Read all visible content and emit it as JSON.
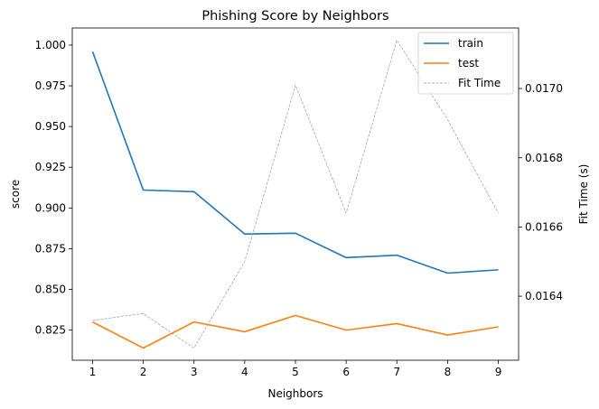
{
  "chart_data": {
    "type": "line",
    "title": "Phishing Score by Neighbors",
    "xlabel": "Neighbors",
    "ylabel": "score",
    "y2label": "Fit Time (s)",
    "x": [
      1,
      2,
      3,
      4,
      5,
      6,
      7,
      8,
      9
    ],
    "xlim": [
      0.6,
      9.4
    ],
    "ylim": [
      0.8065,
      1.0105
    ],
    "y2lim": [
      0.016215,
      0.017175
    ],
    "yticks": [
      0.825,
      0.85,
      0.875,
      0.9,
      0.925,
      0.95,
      0.975,
      1.0
    ],
    "ytick_labels": [
      "0.825",
      "0.850",
      "0.875",
      "0.900",
      "0.925",
      "0.950",
      "0.975",
      "1.000"
    ],
    "y2ticks": [
      0.0164,
      0.0166,
      0.0168,
      0.017
    ],
    "y2tick_labels": [
      "0.0164",
      "0.0166",
      "0.0168",
      "0.0170"
    ],
    "grid": false,
    "legend_position": "top-right",
    "series": [
      {
        "name": "train",
        "axis": "left",
        "color": "#1f77b4",
        "style": "solid",
        "values": [
          0.996,
          0.911,
          0.91,
          0.884,
          0.8845,
          0.8695,
          0.871,
          0.86,
          0.862
        ]
      },
      {
        "name": "test",
        "axis": "left",
        "color": "#ff7f0e",
        "style": "solid",
        "values": [
          0.83,
          0.814,
          0.83,
          0.824,
          0.834,
          0.825,
          0.829,
          0.822,
          0.827
        ]
      },
      {
        "name": "Fit Time",
        "axis": "right",
        "color": "#999999",
        "style": "dashed",
        "values": [
          0.01633,
          0.01635,
          0.01625,
          0.0165,
          0.01701,
          0.01664,
          0.01714,
          0.01691,
          0.01664
        ]
      }
    ]
  }
}
